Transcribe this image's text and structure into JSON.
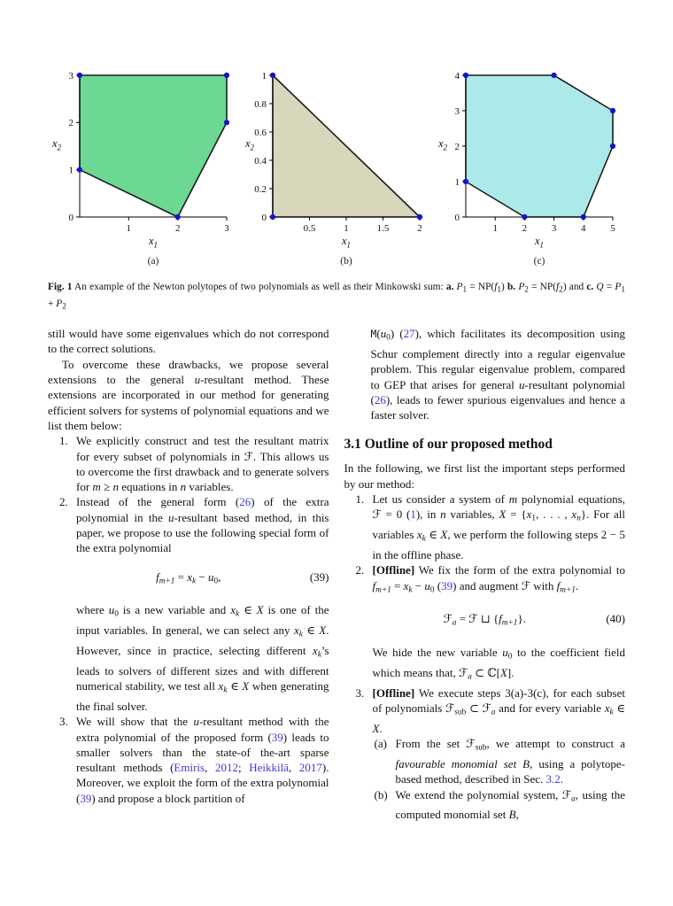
{
  "figure": {
    "caption": [
      {
        "t": "Fig. 1",
        "c": "b"
      },
      {
        "t": "  An example of the Newton polytopes of two polynomials as well as their Minkowski sum: "
      },
      {
        "t": "a.",
        "c": "b"
      },
      {
        "t": " "
      },
      {
        "t": "P",
        "c": "i"
      },
      {
        "t": "1",
        "c": "sub"
      },
      {
        "t": " = NP("
      },
      {
        "t": "f",
        "c": "i"
      },
      {
        "t": "1",
        "c": "sub"
      },
      {
        "t": ") "
      },
      {
        "t": "b.",
        "c": "b"
      },
      {
        "t": " "
      },
      {
        "t": "P",
        "c": "i"
      },
      {
        "t": "2",
        "c": "sub"
      },
      {
        "t": " = NP("
      },
      {
        "t": "f",
        "c": "i"
      },
      {
        "t": "2",
        "c": "sub"
      },
      {
        "t": ") and "
      },
      {
        "t": "c.",
        "c": "b"
      },
      {
        "t": " "
      },
      {
        "t": "Q",
        "c": "i"
      },
      {
        "t": " = "
      },
      {
        "t": "P",
        "c": "i"
      },
      {
        "t": "1",
        "c": "sub"
      },
      {
        "t": " + "
      },
      {
        "t": "P",
        "c": "i"
      },
      {
        "t": "2",
        "c": "sub"
      }
    ]
  },
  "chart_data": [
    {
      "type": "area",
      "shape": "newton-polytope-polygon",
      "label": "(a)",
      "xlabel": "x_1",
      "ylabel": "x_2",
      "xlim": [
        0,
        3
      ],
      "ylim": [
        0,
        3
      ],
      "xticks": [
        1,
        2,
        3
      ],
      "xtick_labels": [
        "1",
        "2",
        "3"
      ],
      "yticks": [
        0,
        1,
        2,
        3
      ],
      "ytick_labels": [
        "0",
        "1",
        "2",
        "3"
      ],
      "vertices": [
        [
          0,
          1
        ],
        [
          0,
          3
        ],
        [
          3,
          3
        ],
        [
          3,
          2
        ],
        [
          2,
          0
        ]
      ],
      "fill": "#6cd893",
      "edge": "#1c1c1c",
      "dot": "#1414cc",
      "grid": false,
      "legend": false
    },
    {
      "type": "area",
      "shape": "newton-polytope-polygon",
      "label": "(b)",
      "xlabel": "x_1",
      "ylabel": "x_2",
      "xlim": [
        0,
        2
      ],
      "ylim": [
        0,
        1
      ],
      "xticks": [
        0.5,
        1,
        1.5,
        2
      ],
      "xtick_labels": [
        "0.5",
        "1",
        "1.5",
        "2"
      ],
      "yticks": [
        0,
        0.2,
        0.4,
        0.6,
        0.8,
        1
      ],
      "ytick_labels": [
        "0",
        "0.2",
        "0.4",
        "0.6",
        "0.8",
        "1"
      ],
      "vertices": [
        [
          0,
          0
        ],
        [
          0,
          1
        ],
        [
          2,
          0
        ]
      ],
      "fill": "#d8d7bc",
      "edge": "#1c1c1c",
      "dot": "#1414cc",
      "grid": false,
      "legend": false
    },
    {
      "type": "area",
      "shape": "newton-polytope-polygon",
      "label": "(c)",
      "xlabel": "x_1",
      "ylabel": "x_2",
      "xlim": [
        0,
        5
      ],
      "ylim": [
        0,
        4
      ],
      "xticks": [
        1,
        2,
        3,
        4,
        5
      ],
      "xtick_labels": [
        "1",
        "2",
        "3",
        "4",
        "5"
      ],
      "yticks": [
        0,
        1,
        2,
        3,
        4
      ],
      "ytick_labels": [
        "0",
        "1",
        "2",
        "3",
        "4"
      ],
      "vertices": [
        [
          0,
          1
        ],
        [
          0,
          4
        ],
        [
          3,
          4
        ],
        [
          5,
          3
        ],
        [
          5,
          2
        ],
        [
          4,
          0
        ],
        [
          2,
          0
        ]
      ],
      "fill": "#ace9e9",
      "edge": "#1c1c1c",
      "dot": "#1414cc",
      "grid": false,
      "legend": false
    }
  ],
  "left": {
    "p1": [
      {
        "t": "still would have some eigenvalues which do not correspond to the correct solutions."
      }
    ],
    "p2": [
      {
        "t": "To overcome these drawbacks, we propose several extensions to the general "
      },
      {
        "t": "u",
        "c": "i"
      },
      {
        "t": "-resultant method. These extensions are incorporated in our method for generating efficient solvers for systems of polynomial equations and we list them below:"
      }
    ],
    "item1_num": "1.",
    "item1": [
      {
        "t": "We explicitly construct and test the resultant matrix for every subset of polynomials in "
      },
      {
        "t": "ℱ"
      },
      {
        "t": ". This allows us to overcome the first drawback and to generate solvers for "
      },
      {
        "t": "m",
        "c": "i"
      },
      {
        "t": " ≥ "
      },
      {
        "t": "n",
        "c": "i"
      },
      {
        "t": " equations in "
      },
      {
        "t": "n",
        "c": "i"
      },
      {
        "t": " variables."
      }
    ],
    "item2_num": "2.",
    "item2a": [
      {
        "t": "Instead of the general form ("
      },
      {
        "t": "26",
        "c": "link"
      },
      {
        "t": ") of the extra polynomial in the "
      },
      {
        "t": "u",
        "c": "i"
      },
      {
        "t": "-resultant based method, in this paper, we propose to use the following special form of the extra polynomial"
      }
    ],
    "eq39": {
      "expr": [
        {
          "t": "f",
          "c": "i"
        },
        {
          "t": "m+1",
          "c": "subi"
        },
        {
          "t": " = "
        },
        {
          "t": "x",
          "c": "i"
        },
        {
          "t": "k",
          "c": "subi"
        },
        {
          "t": " − "
        },
        {
          "t": "u",
          "c": "i"
        },
        {
          "t": "0",
          "c": "sub"
        },
        {
          "t": ","
        }
      ],
      "num": "(39)"
    },
    "item2b": [
      {
        "t": "where "
      },
      {
        "t": "u",
        "c": "i"
      },
      {
        "t": "0",
        "c": "sub"
      },
      {
        "t": " is a new variable and "
      },
      {
        "t": "x",
        "c": "i"
      },
      {
        "t": "k",
        "c": "subi"
      },
      {
        "t": " ∈ "
      },
      {
        "t": "X",
        "c": "i"
      },
      {
        "t": " is one of the input variables. In general, we can select any "
      },
      {
        "t": "x",
        "c": "i"
      },
      {
        "t": "k",
        "c": "subi"
      },
      {
        "t": " ∈ "
      },
      {
        "t": "X",
        "c": "i"
      },
      {
        "t": ". However, since in practice, selecting different "
      },
      {
        "t": "x",
        "c": "i"
      },
      {
        "t": "k",
        "c": "subi"
      },
      {
        "t": "’s leads to solvers of different sizes and with different numerical stability, we test all "
      },
      {
        "t": "x",
        "c": "i"
      },
      {
        "t": "k",
        "c": "subi"
      },
      {
        "t": " ∈ "
      },
      {
        "t": "X",
        "c": "i"
      },
      {
        "t": " when generating the final solver."
      }
    ],
    "item3_num": "3.",
    "item3": [
      {
        "t": "We will show that the "
      },
      {
        "t": "u",
        "c": "i"
      },
      {
        "t": "-resultant method with the extra polynomial of the proposed form ("
      },
      {
        "t": "39",
        "c": "link"
      },
      {
        "t": ") leads to smaller solvers than the state-of the-art sparse resultant methods ("
      },
      {
        "t": "Emiris",
        "c": "link"
      },
      {
        "t": ", "
      },
      {
        "t": "2012",
        "c": "link"
      },
      {
        "t": "; "
      },
      {
        "t": "Heikkilä",
        "c": "link"
      },
      {
        "t": ", "
      },
      {
        "t": "2017",
        "c": "link"
      },
      {
        "t": "). Moreover, we exploit the form of the extra polynomial ("
      },
      {
        "t": "39",
        "c": "link"
      },
      {
        "t": ") and propose a block partition of"
      }
    ]
  },
  "right": {
    "cont": [
      {
        "t": "M",
        "c": "tt"
      },
      {
        "t": "("
      },
      {
        "t": "u",
        "c": "i"
      },
      {
        "t": "0",
        "c": "sub"
      },
      {
        "t": ") ("
      },
      {
        "t": "27",
        "c": "link"
      },
      {
        "t": "), which facilitates its decomposition using Schur complement directly into a regular eigenvalue problem. This regular eigenvalue problem, compared to GEP that arises for general "
      },
      {
        "t": "u",
        "c": "i"
      },
      {
        "t": "-resultant polynomial ("
      },
      {
        "t": "26",
        "c": "link"
      },
      {
        "t": "), leads to fewer spurious eigenvalues and hence a faster solver."
      }
    ],
    "heading": "3.1 Outline of our proposed method",
    "intro": [
      {
        "t": "In the following, we first list the important steps performed by our method:"
      }
    ],
    "item1_num": "1.",
    "item1": [
      {
        "t": "Let us consider a system of "
      },
      {
        "t": "m",
        "c": "i"
      },
      {
        "t": " polynomial equations, "
      },
      {
        "t": "ℱ"
      },
      {
        "t": " = 0 ("
      },
      {
        "t": "1",
        "c": "link"
      },
      {
        "t": "), in "
      },
      {
        "t": "n",
        "c": "i"
      },
      {
        "t": " variables, "
      },
      {
        "t": "X",
        "c": "i"
      },
      {
        "t": " = {"
      },
      {
        "t": "x",
        "c": "i"
      },
      {
        "t": "1",
        "c": "sub"
      },
      {
        "t": ", . . . , "
      },
      {
        "t": "x",
        "c": "i"
      },
      {
        "t": "n",
        "c": "subi"
      },
      {
        "t": "}. For all variables "
      },
      {
        "t": "x",
        "c": "i"
      },
      {
        "t": "k",
        "c": "subi"
      },
      {
        "t": " ∈ "
      },
      {
        "t": "X",
        "c": "i"
      },
      {
        "t": ", we perform the following steps 2 − 5 in the offline phase."
      }
    ],
    "item2_num": "2.",
    "item2a": [
      {
        "t": "[Offline]",
        "c": "b"
      },
      {
        "t": " We fix the form of the extra polynomial to "
      },
      {
        "t": "f",
        "c": "i"
      },
      {
        "t": "m+1",
        "c": "subi"
      },
      {
        "t": " = "
      },
      {
        "t": "x",
        "c": "i"
      },
      {
        "t": "k",
        "c": "subi"
      },
      {
        "t": " − "
      },
      {
        "t": "u",
        "c": "i"
      },
      {
        "t": "0",
        "c": "sub"
      },
      {
        "t": " ("
      },
      {
        "t": "39",
        "c": "link"
      },
      {
        "t": ") and augment "
      },
      {
        "t": "ℱ"
      },
      {
        "t": " with "
      },
      {
        "t": "f",
        "c": "i"
      },
      {
        "t": "m+1",
        "c": "subi"
      },
      {
        "t": "."
      }
    ],
    "eq40": {
      "expr": [
        {
          "t": "ℱ"
        },
        {
          "t": "a",
          "c": "subi"
        },
        {
          "t": " = "
        },
        {
          "t": "ℱ"
        },
        {
          "t": " ⊔ {"
        },
        {
          "t": "f",
          "c": "i"
        },
        {
          "t": "m+1",
          "c": "subi"
        },
        {
          "t": "}."
        }
      ],
      "num": "(40)"
    },
    "item2b": [
      {
        "t": "We hide the new variable "
      },
      {
        "t": "u",
        "c": "i"
      },
      {
        "t": "0",
        "c": "sub"
      },
      {
        "t": " to the coefficient field which means that, "
      },
      {
        "t": "ℱ"
      },
      {
        "t": "a",
        "c": "subi"
      },
      {
        "t": " ⊂ ℂ["
      },
      {
        "t": "X",
        "c": "i"
      },
      {
        "t": "]."
      }
    ],
    "item3_num": "3.",
    "item3": [
      {
        "t": "[Offline]",
        "c": "b"
      },
      {
        "t": " We execute steps 3(a)-3(c), for each subset of polynomials "
      },
      {
        "t": "ℱ"
      },
      {
        "t": "sub",
        "c": "sub"
      },
      {
        "t": " ⊂ "
      },
      {
        "t": "ℱ"
      },
      {
        "t": "a",
        "c": "subi"
      },
      {
        "t": " and for every variable "
      },
      {
        "t": "x",
        "c": "i"
      },
      {
        "t": "k",
        "c": "subi"
      },
      {
        "t": " ∈ "
      },
      {
        "t": "X",
        "c": "i"
      },
      {
        "t": "."
      }
    ],
    "item3a_num": "(a)",
    "item3a": [
      {
        "t": "From the set "
      },
      {
        "t": "ℱ"
      },
      {
        "t": "sub",
        "c": "sub"
      },
      {
        "t": ", we attempt to construct a "
      },
      {
        "t": "favourable monomial set",
        "c": "i"
      },
      {
        "t": " "
      },
      {
        "t": "B",
        "c": "i"
      },
      {
        "t": ", using a polytope-based method, described in Sec. "
      },
      {
        "t": "3.2",
        "c": "link"
      },
      {
        "t": "."
      }
    ],
    "item3b_num": "(b)",
    "item3b": [
      {
        "t": "We extend the polynomial system, "
      },
      {
        "t": "ℱ"
      },
      {
        "t": "a",
        "c": "subi"
      },
      {
        "t": ", using the computed monomial set "
      },
      {
        "t": "B",
        "c": "i"
      },
      {
        "t": ","
      }
    ]
  }
}
